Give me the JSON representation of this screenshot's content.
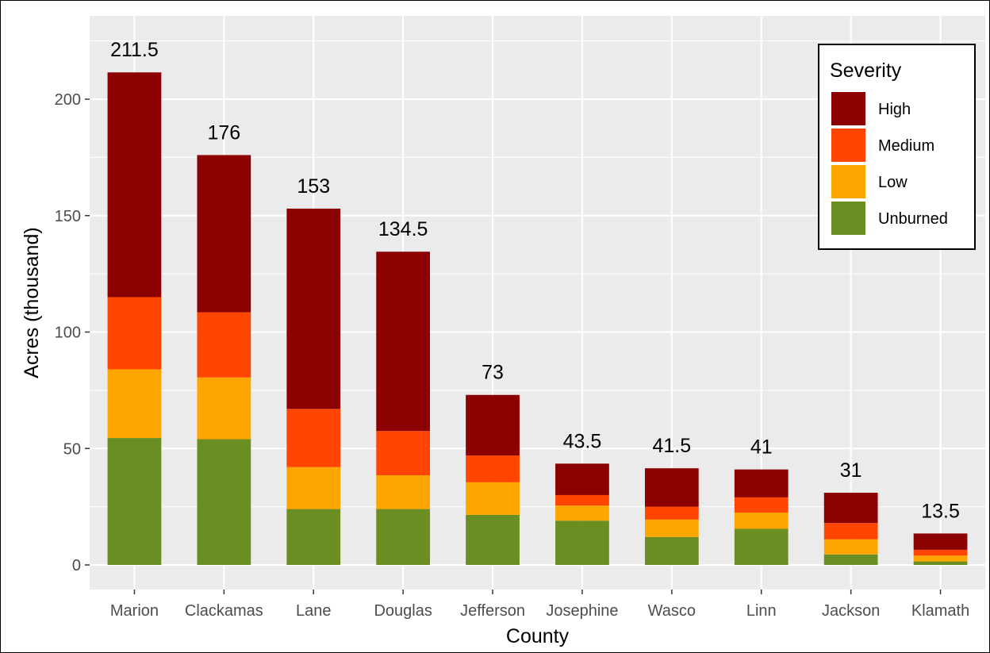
{
  "chart_data": {
    "type": "bar",
    "stacked": true,
    "xlabel": "County",
    "ylabel": "Acres (thousand)",
    "ylim": [
      0,
      225
    ],
    "yticks": [
      0,
      50,
      100,
      150,
      200
    ],
    "grid": true,
    "legend_position": "top-right",
    "legend_title": "Severity",
    "categories": [
      "Marion",
      "Clackamas",
      "Lane",
      "Douglas",
      "Jefferson",
      "Josephine",
      "Wasco",
      "Linn",
      "Jackson",
      "Klamath"
    ],
    "totals": [
      211.5,
      176,
      153,
      134.5,
      73,
      43.5,
      41.5,
      41,
      31,
      13.5
    ],
    "total_labels": [
      "211.5",
      "176",
      "153",
      "134.5",
      "73",
      "43.5",
      "41.5",
      "41",
      "31",
      "13.5"
    ],
    "series": [
      {
        "name": "Unburned",
        "color": "#6B8E23",
        "values": [
          54.5,
          54,
          24,
          24,
          21.5,
          19,
          12,
          15.5,
          4.5,
          1.5
        ]
      },
      {
        "name": "Low",
        "color": "#FFA500",
        "values": [
          29.5,
          26.5,
          18,
          14.5,
          14,
          6.5,
          7.5,
          7,
          6.5,
          2.5
        ]
      },
      {
        "name": "Medium",
        "color": "#FF4500",
        "values": [
          31,
          28,
          25,
          19,
          11.5,
          4.5,
          5.5,
          6.5,
          7,
          2.5
        ]
      },
      {
        "name": "High",
        "color": "#8B0000",
        "values": [
          96.5,
          67.5,
          86,
          77,
          26,
          13.5,
          16.5,
          12,
          13,
          7
        ]
      }
    ],
    "legend_order": [
      "High",
      "Medium",
      "Low",
      "Unburned"
    ]
  }
}
